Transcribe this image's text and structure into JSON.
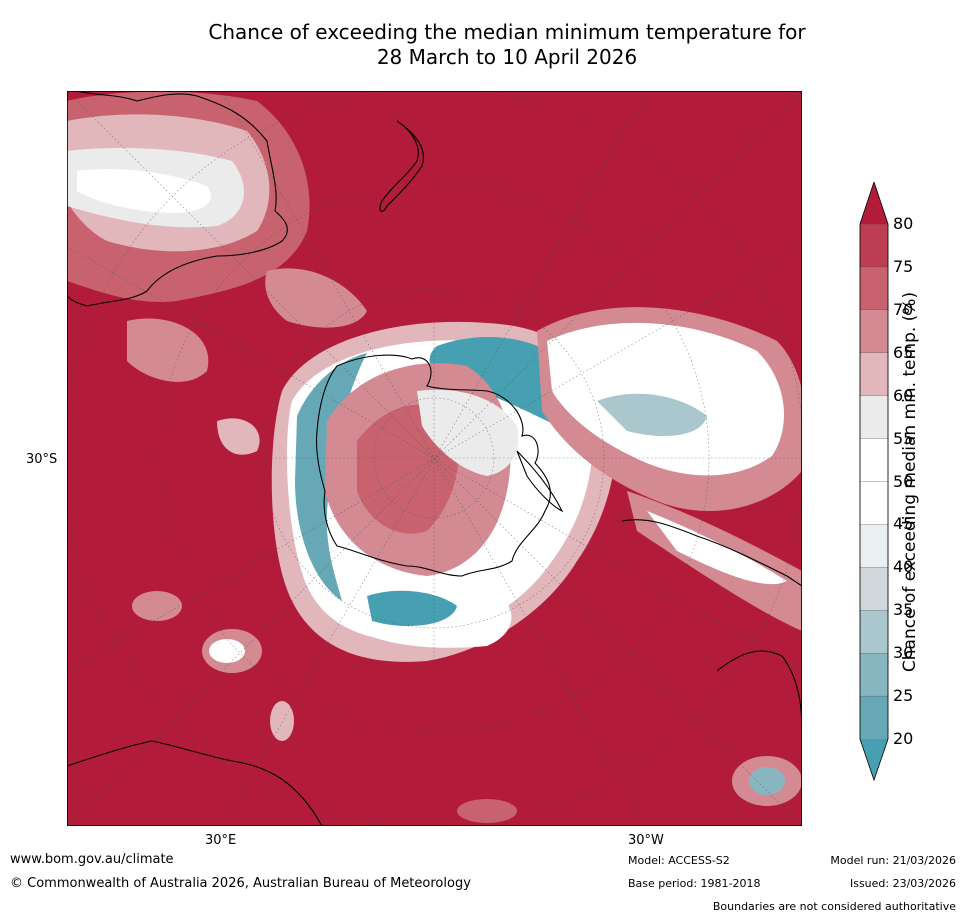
{
  "title": {
    "line1": "Chance of exceeding the median minimum temperature for",
    "line2": "28 March to 10 April 2026"
  },
  "map": {
    "projection": "south-polar",
    "labels": {
      "lat_30s": "30°S",
      "lon_30e": "30°E",
      "lon_30w": "30°W"
    }
  },
  "colorbar": {
    "title": "Chance of exceeding median min. temp. (%)",
    "ticks": [
      "80",
      "75",
      "70",
      "65",
      "60",
      "55",
      "50",
      "45",
      "40",
      "35",
      "30",
      "25",
      "20"
    ],
    "colors": {
      "above_80": "#b31b3a",
      "75_80": "#bd3e52",
      "70_75": "#c7626e",
      "65_70": "#d38a92",
      "60_65": "#e2b7bc",
      "55_60": "#ebebeb",
      "50_55": "#ffffff",
      "45_50": "#ffffff",
      "40_45": "#eaeff2",
      "35_40": "#d1d8dc",
      "30_35": "#aac7cd",
      "25_30": "#87b6c1",
      "20_25": "#66a8b5",
      "below_20": "#46a0b2"
    }
  },
  "footer": {
    "website": "www.bom.gov.au/climate",
    "copyright": "© Commonwealth of Australia 2026, Australian Bureau of Meteorology",
    "model": "Model: ACCESS-S2",
    "base_period": "Base period: 1981-2018",
    "model_run": "Model run: 21/03/2026",
    "issued": "Issued: 23/03/2026",
    "disclaimer": "Boundaries are not considered authoritative"
  }
}
